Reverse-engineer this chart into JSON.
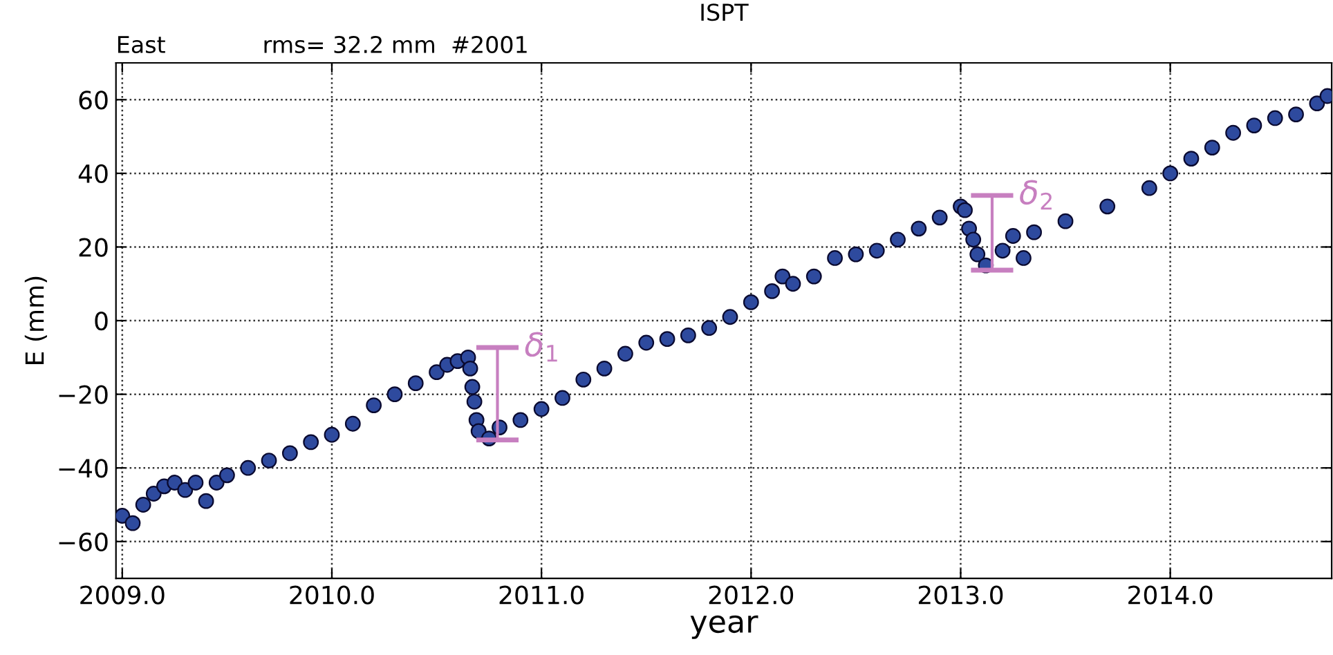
{
  "chart_data": {
    "type": "scatter",
    "title": "ISPT",
    "xlabel": "year",
    "ylabel": "E (mm)",
    "annotations": [
      "East",
      "rms= 32.2 mm  #2001",
      "δ$_{1}$",
      "δ$_{2}$"
    ],
    "xlim": [
      2008.97,
      2014.77
    ],
    "ylim": [
      -70,
      70
    ],
    "xticks": [
      {
        "value": 2009,
        "label": "2009.0"
      },
      {
        "value": 2010,
        "label": "2010.0"
      },
      {
        "value": 2011,
        "label": "2011.0"
      },
      {
        "value": 2012,
        "label": "2012.0"
      },
      {
        "value": 2013,
        "label": "2013.0"
      },
      {
        "value": 2014,
        "label": "2014.0"
      }
    ],
    "yticks": [
      -60,
      -40,
      -20,
      0,
      20,
      40,
      60
    ],
    "grid": true,
    "marker": "circle",
    "series": [
      {
        "color": "#2e4a9e",
        "x": [
          2009.0,
          2009.05,
          2009.1,
          2009.15,
          2009.2,
          2009.25,
          2009.3,
          2009.35,
          2009.4,
          2009.45,
          2009.5,
          2009.6,
          2009.7,
          2009.8,
          2009.9,
          2010.0,
          2010.1,
          2010.2,
          2010.3,
          2010.4,
          2010.5,
          2010.55,
          2010.6,
          2010.65,
          2010.66,
          2010.67,
          2010.68,
          2010.69,
          2010.7,
          2010.75,
          2010.8,
          2010.9,
          2011.0,
          2011.1,
          2011.2,
          2011.3,
          2011.4,
          2011.5,
          2011.6,
          2011.7,
          2011.8,
          2011.9,
          2012.0,
          2012.1,
          2012.15,
          2012.2,
          2012.3,
          2012.4,
          2012.5,
          2012.6,
          2012.7,
          2012.8,
          2012.9,
          2013.0,
          2013.02,
          2013.04,
          2013.06,
          2013.08,
          2013.12,
          2013.2,
          2013.25,
          2013.3,
          2013.35,
          2013.5,
          2013.7,
          2013.9,
          2014.0,
          2014.1,
          2014.2,
          2014.3,
          2014.4,
          2014.5,
          2014.6,
          2014.7,
          2014.75
        ],
        "values": [
          -53,
          -55,
          -50,
          -47,
          -45,
          -44,
          -46,
          -44,
          -49,
          -44,
          -42,
          -40,
          -38,
          -36,
          -33,
          -31,
          -28,
          -23,
          -20,
          -17,
          -14,
          -12,
          -11,
          -10,
          -13,
          -18,
          -22,
          -27,
          -30,
          -32,
          -29,
          -27,
          -24,
          -21,
          -16,
          -13,
          -9,
          -6,
          -5,
          -4,
          -2,
          1,
          5,
          8,
          12,
          10,
          12,
          17,
          18,
          19,
          22,
          25,
          28,
          31,
          30,
          25,
          22,
          18,
          15,
          19,
          23,
          17,
          24,
          27,
          31,
          36,
          40,
          44,
          47,
          51,
          53,
          55,
          56,
          59,
          61
        ]
      },
      {
        "type": "line",
        "color": "#c77fc0",
        "marker": "none",
        "x": [
          2010.79,
          2010.79
        ],
        "values": [
          -32.4,
          -7.3
        ]
      },
      {
        "type": "line",
        "color": "#c77fc0",
        "marker": "none",
        "x": [
          2013.15,
          2013.15
        ],
        "values": [
          13.7,
          34
        ]
      }
    ]
  }
}
